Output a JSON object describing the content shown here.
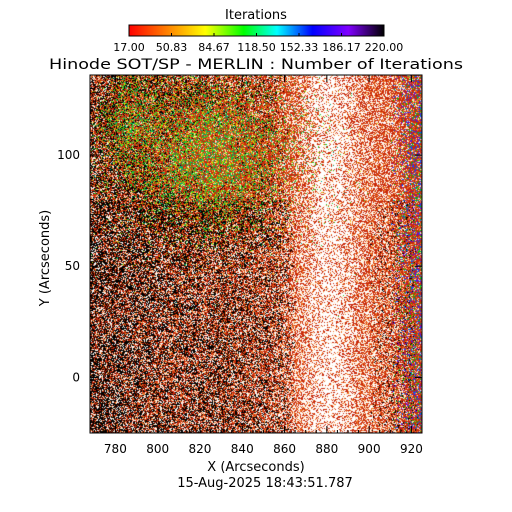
{
  "chart_data": {
    "type": "heatmap",
    "title": "Hinode SOT/SP - MERLIN : Number of Iterations",
    "xlabel": "X (Arcseconds)",
    "ylabel": "Y (Arcseconds)",
    "xlim": [
      768,
      925
    ],
    "ylim": [
      -25,
      136
    ],
    "x_ticks": [
      780,
      800,
      820,
      840,
      860,
      880,
      900,
      920
    ],
    "y_ticks": [
      0,
      50,
      100
    ],
    "colorbar": {
      "title": "Iterations",
      "min": 17.0,
      "max": 220.0,
      "tick_labels": [
        "17.00",
        "50.83",
        "84.67",
        "118.50",
        "152.33",
        "186.17",
        "220.00"
      ],
      "colors": [
        "#ff0000",
        "#ff8000",
        "#ffff00",
        "#00ff00",
        "#00ffff",
        "#0000ff",
        "#8000ff",
        "#000000"
      ]
    },
    "timestamp": "15-Aug-2025 18:43:51.787"
  }
}
